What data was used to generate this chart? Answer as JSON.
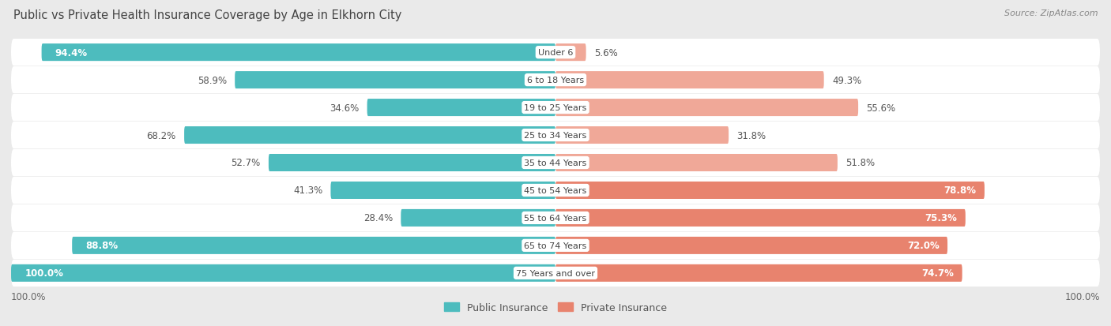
{
  "title": "Public vs Private Health Insurance Coverage by Age in Elkhorn City",
  "source": "Source: ZipAtlas.com",
  "categories": [
    "Under 6",
    "6 to 18 Years",
    "19 to 25 Years",
    "25 to 34 Years",
    "35 to 44 Years",
    "45 to 54 Years",
    "55 to 64 Years",
    "65 to 74 Years",
    "75 Years and over"
  ],
  "public_values": [
    94.4,
    58.9,
    34.6,
    68.2,
    52.7,
    41.3,
    28.4,
    88.8,
    100.0
  ],
  "private_values": [
    5.6,
    49.3,
    55.6,
    31.8,
    51.8,
    78.8,
    75.3,
    72.0,
    74.7
  ],
  "public_color": "#4dbcbe",
  "private_color": "#e8836e",
  "private_color_light": "#f0a898",
  "background_color": "#eaeaea",
  "bar_bg_color": "#ffffff",
  "bar_height": 0.62,
  "title_fontsize": 10.5,
  "label_fontsize": 8.5,
  "category_fontsize": 8,
  "legend_fontsize": 9,
  "source_fontsize": 8,
  "private_threshold": 60
}
